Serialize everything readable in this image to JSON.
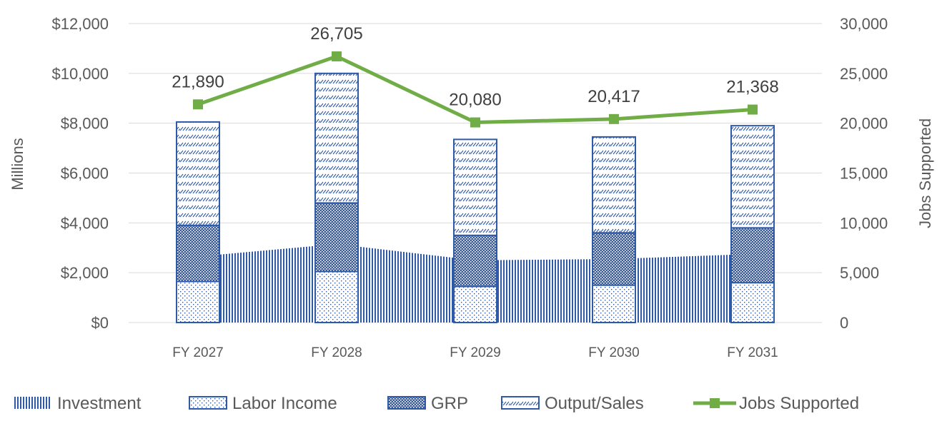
{
  "chart_data": {
    "type": "bar",
    "categories": [
      "FY 2027",
      "FY 2028",
      "FY 2029",
      "FY 2030",
      "FY 2031"
    ],
    "y_left": {
      "label": "Millions",
      "ticks": [
        "$0",
        "$2,000",
        "$4,000",
        "$6,000",
        "$8,000",
        "$10,000",
        "$12,000"
      ],
      "ylim": [
        0,
        12000
      ]
    },
    "y_right": {
      "label": "Jobs Supported",
      "ticks": [
        "0",
        "5,000",
        "10,000",
        "15,000",
        "20,000",
        "25,000",
        "30,000"
      ],
      "ylim": [
        0,
        30000
      ]
    },
    "series": [
      {
        "name": "Investment",
        "kind": "area",
        "axis": "left",
        "values": [
          2650,
          3150,
          2500,
          2550,
          2750
        ]
      },
      {
        "name": "Labor Income",
        "kind": "bar",
        "axis": "left",
        "values": [
          1650,
          2050,
          1450,
          1500,
          1600
        ]
      },
      {
        "name": "GRP",
        "kind": "bar",
        "axis": "left",
        "values": [
          3900,
          4800,
          3500,
          3600,
          3800
        ]
      },
      {
        "name": "Output/Sales",
        "kind": "bar",
        "axis": "left",
        "values": [
          8050,
          10000,
          7350,
          7450,
          7900
        ]
      },
      {
        "name": "Jobs Supported",
        "kind": "line",
        "axis": "right",
        "values": [
          21890,
          26705,
          20080,
          20417,
          21368
        ],
        "labels": [
          "21,890",
          "26,705",
          "20,080",
          "20,417",
          "21,368"
        ]
      }
    ],
    "grid": true,
    "legend": "bottom",
    "colors": {
      "bar_blue": "#2e5aa8",
      "line_green": "#70ad47",
      "grid": "#d9d9d9",
      "text": "#595959"
    }
  }
}
